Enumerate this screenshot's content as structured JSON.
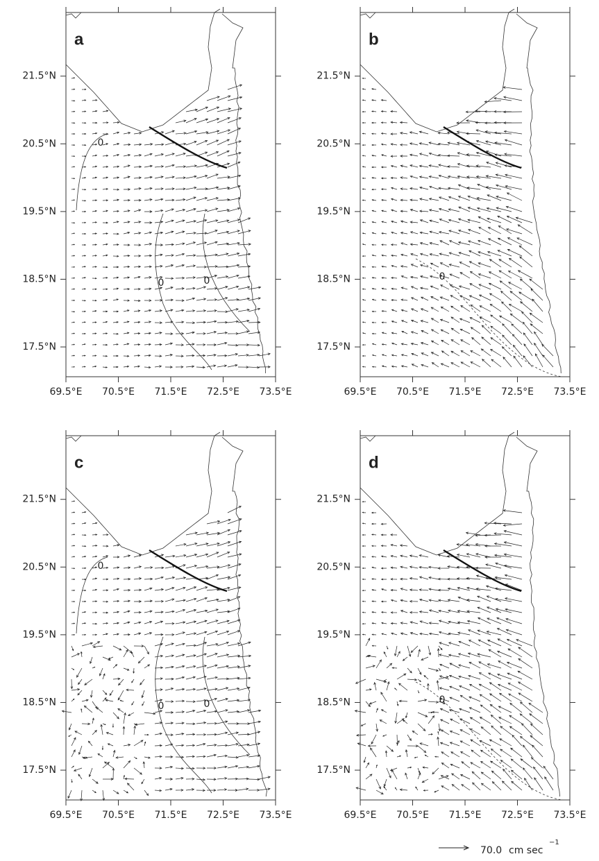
{
  "panels": [
    {
      "label": "a",
      "xticks": [
        {
          "value": 69.5,
          "label": "69.5°E"
        },
        {
          "value": 70.5,
          "label": "70.5°E"
        },
        {
          "value": 71.5,
          "label": "71.5°E"
        },
        {
          "value": 72.5,
          "label": "72.5°E"
        },
        {
          "value": 73.5,
          "label": "73.5°E"
        }
      ],
      "yticks": [
        {
          "value": 17.5,
          "label": "17.5°N"
        },
        {
          "value": 18.5,
          "label": "18.5°N"
        },
        {
          "value": 19.5,
          "label": "19.5°N"
        },
        {
          "value": 20.5,
          "label": "20.5°N"
        },
        {
          "value": 21.5,
          "label": "21.5°N"
        }
      ],
      "contour_labels": [
        "0",
        "0",
        "0"
      ]
    },
    {
      "label": "b",
      "xticks": [
        {
          "value": 69.5,
          "label": "69.5°E"
        },
        {
          "value": 70.5,
          "label": "70.5°E"
        },
        {
          "value": 71.5,
          "label": "71.5°E"
        },
        {
          "value": 72.5,
          "label": "72.5°E"
        },
        {
          "value": 73.5,
          "label": "73.5°E"
        }
      ],
      "yticks": [
        {
          "value": 17.5,
          "label": "17.5°N"
        },
        {
          "value": 18.5,
          "label": "18.5°N"
        },
        {
          "value": 19.5,
          "label": "19.5°N"
        },
        {
          "value": 20.5,
          "label": "20.5°N"
        },
        {
          "value": 21.5,
          "label": "21.5°N"
        }
      ],
      "contour_labels": [
        "0"
      ]
    },
    {
      "label": "c",
      "xticks": [
        {
          "value": 69.5,
          "label": "69.5°E"
        },
        {
          "value": 70.5,
          "label": "70.5°E"
        },
        {
          "value": 71.5,
          "label": "71.5°E"
        },
        {
          "value": 72.5,
          "label": "72.5°E"
        },
        {
          "value": 73.5,
          "label": "73.5°E"
        }
      ],
      "yticks": [
        {
          "value": 17.5,
          "label": "17.5°N"
        },
        {
          "value": 18.5,
          "label": "18.5°N"
        },
        {
          "value": 19.5,
          "label": "19.5°N"
        },
        {
          "value": 20.5,
          "label": "20.5°N"
        },
        {
          "value": 21.5,
          "label": "21.5°N"
        }
      ],
      "contour_labels": [
        "0",
        "0",
        "0"
      ]
    },
    {
      "label": "d",
      "xticks": [
        {
          "value": 69.5,
          "label": "69.5°E"
        },
        {
          "value": 70.5,
          "label": "70.5°E"
        },
        {
          "value": 71.5,
          "label": "71.5°E"
        },
        {
          "value": 72.5,
          "label": "72.5°E"
        },
        {
          "value": 73.5,
          "label": "73.5°E"
        }
      ],
      "yticks": [
        {
          "value": 17.5,
          "label": "17.5°N"
        },
        {
          "value": 18.5,
          "label": "18.5°N"
        },
        {
          "value": 19.5,
          "label": "19.5°N"
        },
        {
          "value": 20.5,
          "label": "20.5°N"
        },
        {
          "value": 21.5,
          "label": "21.5°N"
        }
      ],
      "contour_labels": [
        "0"
      ]
    }
  ],
  "legend": {
    "value_text": "70.0",
    "unit": "cm sec",
    "exponent": "−1"
  }
}
